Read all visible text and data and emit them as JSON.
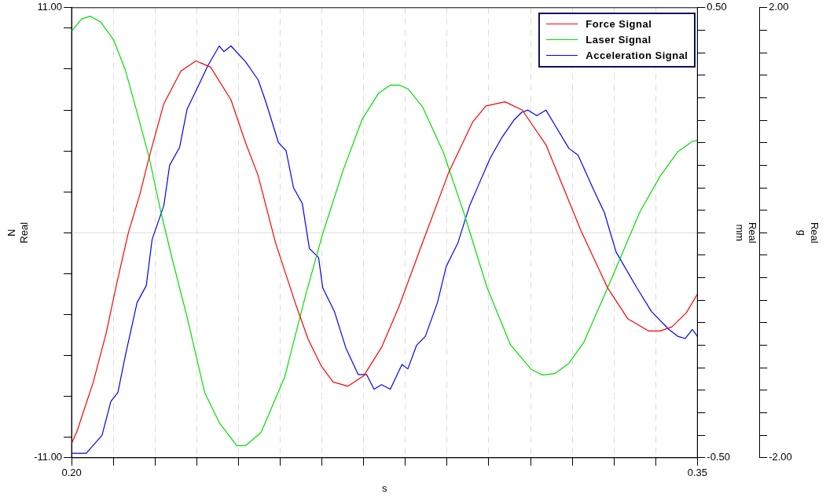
{
  "chart_data": {
    "type": "line",
    "xlabel": "s",
    "ylabel": "N\nReal",
    "y2label": "Real\nmm",
    "y3label": "Real\ng",
    "xlim": [
      0.2,
      0.35
    ],
    "xticks": [
      {
        "value": 0.2,
        "label": "0.20"
      },
      {
        "value": 0.21,
        "label": null
      },
      {
        "value": 0.22,
        "label": null
      },
      {
        "value": 0.23,
        "label": null
      },
      {
        "value": 0.24,
        "label": null
      },
      {
        "value": 0.25,
        "label": null
      },
      {
        "value": 0.26,
        "label": null
      },
      {
        "value": 0.27,
        "label": null
      },
      {
        "value": 0.28,
        "label": null
      },
      {
        "value": 0.29,
        "label": null
      },
      {
        "value": 0.3,
        "label": null
      },
      {
        "value": 0.31,
        "label": null
      },
      {
        "value": 0.32,
        "label": null
      },
      {
        "value": 0.33,
        "label": null
      },
      {
        "value": 0.34,
        "label": null
      },
      {
        "value": 0.35,
        "label": "0.35"
      }
    ],
    "ylim": [
      -11,
      11
    ],
    "yticks": [
      {
        "value": -11,
        "label": "-11.00"
      },
      {
        "value": -10,
        "label": null
      },
      {
        "value": -8,
        "label": null
      },
      {
        "value": -6,
        "label": null
      },
      {
        "value": -4,
        "label": null
      },
      {
        "value": -2,
        "label": null
      },
      {
        "value": 0,
        "label": null
      },
      {
        "value": 2,
        "label": null
      },
      {
        "value": 4,
        "label": null
      },
      {
        "value": 6,
        "label": null
      },
      {
        "value": 8,
        "label": null
      },
      {
        "value": 10,
        "label": null
      },
      {
        "value": 11,
        "label": "11.00"
      }
    ],
    "y2lim": [
      -0.5,
      0.5
    ],
    "y2ticks": [
      {
        "value": -0.5,
        "label": "-0.50"
      },
      {
        "value": -0.45,
        "label": null
      },
      {
        "value": -0.4,
        "label": null
      },
      {
        "value": -0.35,
        "label": null
      },
      {
        "value": -0.3,
        "label": null
      },
      {
        "value": -0.25,
        "label": null
      },
      {
        "value": -0.2,
        "label": null
      },
      {
        "value": -0.15,
        "label": null
      },
      {
        "value": -0.1,
        "label": null
      },
      {
        "value": -0.05,
        "label": null
      },
      {
        "value": 0,
        "label": null
      },
      {
        "value": 0.05,
        "label": null
      },
      {
        "value": 0.1,
        "label": null
      },
      {
        "value": 0.15,
        "label": null
      },
      {
        "value": 0.2,
        "label": null
      },
      {
        "value": 0.25,
        "label": null
      },
      {
        "value": 0.3,
        "label": null
      },
      {
        "value": 0.35,
        "label": null
      },
      {
        "value": 0.4,
        "label": null
      },
      {
        "value": 0.45,
        "label": null
      },
      {
        "value": 0.5,
        "label": "0.50"
      }
    ],
    "y3lim": [
      -2,
      2
    ],
    "y3ticks": [
      {
        "value": -2,
        "label": "-2.00"
      },
      {
        "value": -1.8,
        "label": null
      },
      {
        "value": -1.6,
        "label": null
      },
      {
        "value": -1.4,
        "label": null
      },
      {
        "value": -1.2,
        "label": null
      },
      {
        "value": -1,
        "label": null
      },
      {
        "value": -0.8,
        "label": null
      },
      {
        "value": -0.6,
        "label": null
      },
      {
        "value": -0.4,
        "label": null
      },
      {
        "value": -0.2,
        "label": null
      },
      {
        "value": 0,
        "label": null
      },
      {
        "value": 0.2,
        "label": null
      },
      {
        "value": 0.4,
        "label": null
      },
      {
        "value": 0.6,
        "label": null
      },
      {
        "value": 0.8,
        "label": null
      },
      {
        "value": 1,
        "label": null
      },
      {
        "value": 1.2,
        "label": null
      },
      {
        "value": 1.4,
        "label": null
      },
      {
        "value": 1.6,
        "label": null
      },
      {
        "value": 1.8,
        "label": null
      },
      {
        "value": 2,
        "label": "2.00"
      }
    ],
    "grid": "x",
    "legend": "top right",
    "marker": "none",
    "line_style": "solid",
    "ref_lines": [
      {
        "axis": "y",
        "value": 0,
        "color": "#dddddd"
      }
    ],
    "series": [
      {
        "name": "Force Signal",
        "color": "#ff0000",
        "x": [
          0.2,
          0.2013,
          0.2052,
          0.2083,
          0.2108,
          0.2136,
          0.2164,
          0.2186,
          0.2221,
          0.2262,
          0.2298,
          0.2333,
          0.2382,
          0.2417,
          0.2447,
          0.2489,
          0.2539,
          0.2567,
          0.2598,
          0.2627,
          0.2662,
          0.27,
          0.2743,
          0.2785,
          0.2841,
          0.2905,
          0.2961,
          0.2993,
          0.3039,
          0.308,
          0.3137,
          0.3185,
          0.3221,
          0.3285,
          0.3333,
          0.3383,
          0.3411,
          0.3439,
          0.3474,
          0.35
        ],
        "values": [
          -10.3,
          -9.7,
          -7.3,
          -4.9,
          -2.5,
          0,
          1.9,
          3.7,
          6.3,
          7.9,
          8.4,
          8.1,
          6.5,
          4.4,
          2.8,
          -0.5,
          -3.6,
          -5.2,
          -6.5,
          -7.3,
          -7.5,
          -7,
          -5.6,
          -3.6,
          -0.5,
          3,
          5.4,
          6.2,
          6.4,
          6,
          4.3,
          1.9,
          0.1,
          -2.7,
          -4.2,
          -4.8,
          -4.8,
          -4.6,
          -3.9,
          -3
        ]
      },
      {
        "name": "Laser Signal",
        "color": "#00e000",
        "axis": "y2",
        "x": [
          0.2,
          0.2024,
          0.2045,
          0.207,
          0.2101,
          0.2129,
          0.2157,
          0.2186,
          0.2214,
          0.2242,
          0.2277,
          0.2319,
          0.2354,
          0.2396,
          0.2417,
          0.2454,
          0.2511,
          0.256,
          0.2602,
          0.2651,
          0.2697,
          0.2736,
          0.2764,
          0.2785,
          0.2806,
          0.2841,
          0.2891,
          0.294,
          0.2996,
          0.3052,
          0.3101,
          0.3129,
          0.3158,
          0.3192,
          0.3228,
          0.3285,
          0.3319,
          0.3362,
          0.3411,
          0.3453,
          0.3488,
          0.35
        ],
        "values": [
          0.448,
          0.475,
          0.481,
          0.468,
          0.428,
          0.361,
          0.267,
          0.167,
          0.046,
          -0.061,
          -0.188,
          -0.355,
          -0.422,
          -0.473,
          -0.473,
          -0.444,
          -0.32,
          -0.142,
          -0.002,
          0.139,
          0.253,
          0.31,
          0.328,
          0.328,
          0.32,
          0.28,
          0.179,
          0.045,
          -0.122,
          -0.249,
          -0.303,
          -0.316,
          -0.313,
          -0.29,
          -0.243,
          -0.122,
          -0.048,
          0.046,
          0.126,
          0.18,
          0.203,
          0.205
        ]
      },
      {
        "name": "Acceleration Signal",
        "color": "#0000ff",
        "axis": "y3",
        "x": [
          0.2,
          0.2035,
          0.2073,
          0.2094,
          0.2111,
          0.2129,
          0.2157,
          0.2179,
          0.2193,
          0.2221,
          0.2235,
          0.2259,
          0.2277,
          0.2298,
          0.2326,
          0.2354,
          0.2365,
          0.2382,
          0.2417,
          0.2447,
          0.2465,
          0.2496,
          0.2514,
          0.2532,
          0.2553,
          0.257,
          0.2592,
          0.2602,
          0.263,
          0.2658,
          0.2687,
          0.2707,
          0.2725,
          0.2743,
          0.2764,
          0.2792,
          0.2806,
          0.2827,
          0.2848,
          0.2877,
          0.2898,
          0.2926,
          0.2954,
          0.2975,
          0.3003,
          0.3032,
          0.306,
          0.3079,
          0.3094,
          0.3115,
          0.3137,
          0.3158,
          0.3192,
          0.3214,
          0.3249,
          0.3277,
          0.3305,
          0.3355,
          0.339,
          0.3432,
          0.3453,
          0.3471,
          0.3488,
          0.35
        ],
        "values": [
          -1.96,
          -1.96,
          -1.8,
          -1.5,
          -1.42,
          -1.09,
          -0.62,
          -0.47,
          -0.06,
          0.24,
          0.6,
          0.76,
          1.1,
          1.26,
          1.48,
          1.66,
          1.61,
          1.66,
          1.52,
          1.36,
          1.17,
          0.8,
          0.73,
          0.4,
          0.26,
          -0.14,
          -0.22,
          -0.49,
          -0.7,
          -1.03,
          -1.26,
          -1.26,
          -1.39,
          -1.35,
          -1.39,
          -1.17,
          -1.21,
          -1,
          -0.92,
          -0.62,
          -0.3,
          -0.09,
          0.24,
          0.42,
          0.66,
          0.85,
          1,
          1.07,
          1.09,
          1.04,
          1.09,
          0.96,
          0.75,
          0.69,
          0.4,
          0.18,
          -0.17,
          -0.49,
          -0.7,
          -0.86,
          -0.92,
          -0.94,
          -0.86,
          -0.92
        ]
      }
    ]
  }
}
